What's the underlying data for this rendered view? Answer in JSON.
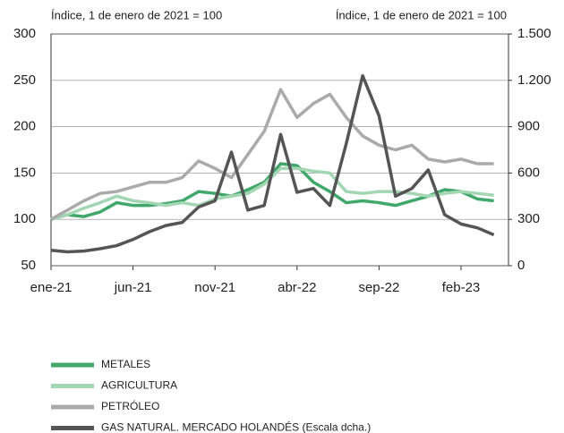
{
  "chart_data": {
    "type": "line",
    "y_label": "Índice, 1 de enero de 2021 = 100",
    "y2_label": "Índice, 1 de enero de 2021 = 100",
    "categories": [
      "ene-21",
      null,
      null,
      null,
      null,
      "jun-21",
      null,
      null,
      null,
      null,
      "nov-21",
      null,
      null,
      null,
      null,
      "abr-22",
      null,
      null,
      null,
      null,
      "sep-22",
      null,
      null,
      null,
      null,
      "feb-23",
      null,
      null
    ],
    "ylim": [
      50,
      300
    ],
    "yticks": [
      50,
      100,
      150,
      200,
      250,
      300
    ],
    "y2lim": [
      0,
      1500
    ],
    "y2ticks": [
      0,
      300,
      600,
      900,
      {
        "value": 1200,
        "label": "1.200"
      },
      {
        "value": 1500,
        "label": "1.500"
      }
    ],
    "grid": true,
    "series": [
      {
        "name": "METALES",
        "color": "#3fa86a",
        "values": [
          100,
          105,
          103,
          108,
          118,
          115,
          115,
          117,
          120,
          130,
          128,
          125,
          132,
          140,
          160,
          158,
          140,
          130,
          118,
          120,
          118,
          115,
          120,
          125,
          132,
          130,
          122,
          120
        ]
      },
      {
        "name": "AGRICULTURA",
        "color": "#a3d6b3",
        "values": [
          100,
          105,
          112,
          118,
          125,
          120,
          118,
          115,
          118,
          115,
          122,
          125,
          128,
          138,
          155,
          155,
          152,
          150,
          130,
          128,
          130,
          130,
          128,
          125,
          128,
          130,
          128,
          126
        ]
      },
      {
        "name": "PETRÓLEO",
        "color": "#aaaaaa",
        "values": [
          100,
          110,
          120,
          128,
          130,
          135,
          140,
          140,
          145,
          163,
          155,
          145,
          170,
          195,
          240,
          210,
          225,
          235,
          210,
          190,
          180,
          175,
          180,
          165,
          162,
          165,
          160,
          160
        ]
      },
      {
        "name": "GAS NATURAL. MERCADO HOLANDÉS (Escala dcha.)",
        "color": "#555555",
        "axis": "y2",
        "values": [
          100,
          90,
          95,
          110,
          130,
          170,
          220,
          260,
          280,
          380,
          420,
          735,
          360,
          390,
          850,
          475,
          500,
          390,
          790,
          1230,
          970,
          450,
          500,
          620,
          330,
          270,
          245,
          200
        ]
      }
    ]
  }
}
